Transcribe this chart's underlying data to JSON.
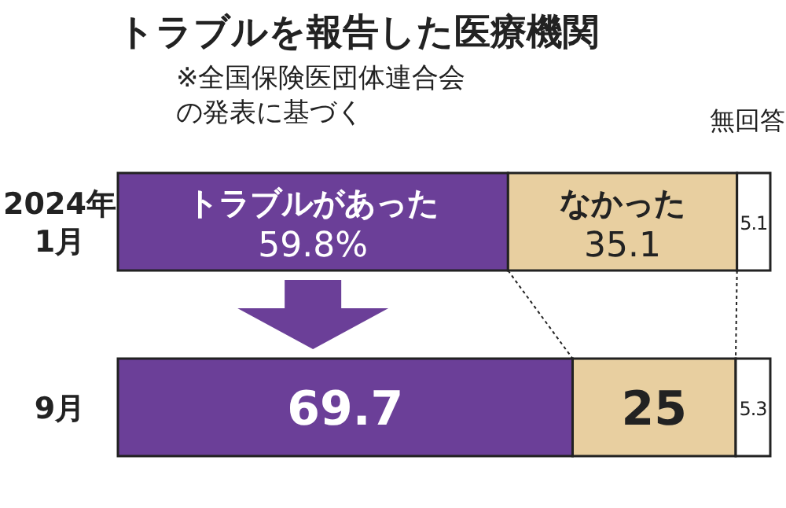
{
  "chart_data": {
    "type": "bar",
    "orientation": "horizontal",
    "stacked": true,
    "title": "トラブルを報告した医療機関",
    "annotations": [
      "※全国保険医団体連合会",
      "の発表に基づく"
    ],
    "categories": [
      "2024年\n1月",
      "9月"
    ],
    "series": [
      {
        "name": "トラブルがあった",
        "color": "#6b3f98",
        "values": [
          59.8,
          69.7
        ],
        "value_labels": [
          "59.8%",
          "69.7"
        ]
      },
      {
        "name": "なかった",
        "color": "#e8cfa0",
        "values": [
          35.1,
          25
        ],
        "value_labels": [
          "35.1",
          "25"
        ]
      },
      {
        "name": "無回答",
        "color": "#ffffff",
        "values": [
          5.1,
          5.3
        ],
        "value_labels": [
          "5.1",
          "5.3"
        ]
      }
    ]
  }
}
